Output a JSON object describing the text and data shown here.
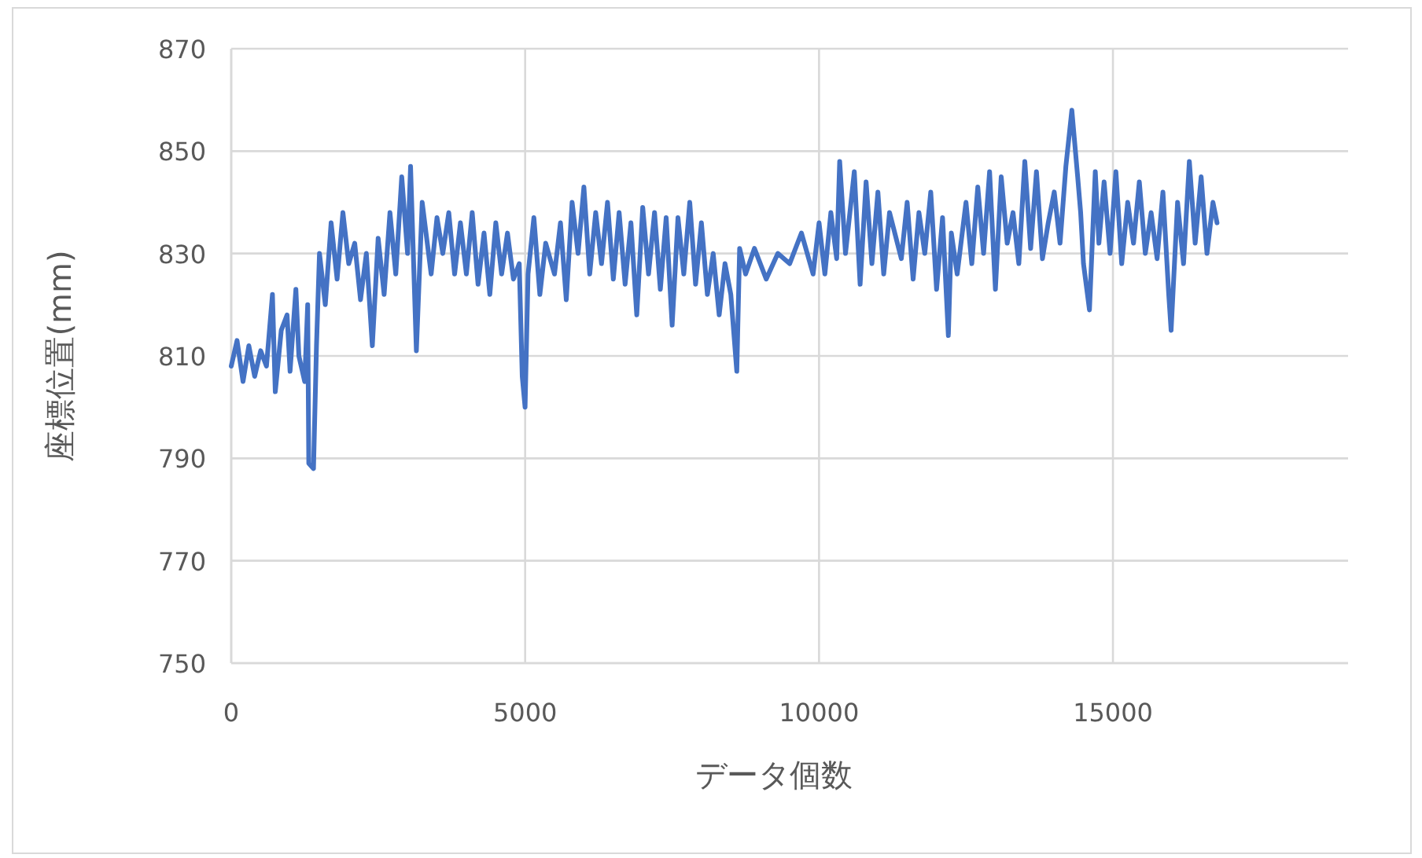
{
  "chart_data": {
    "type": "line",
    "xlabel": "データ個数",
    "ylabel": "座標位置(mm)",
    "xlim": [
      0,
      19000
    ],
    "ylim": [
      750,
      870
    ],
    "xticks": [
      0,
      5000,
      10000,
      15000
    ],
    "yticks": [
      750,
      770,
      790,
      810,
      830,
      850,
      870
    ],
    "grid": true,
    "series": [
      {
        "color": "#4472c4",
        "x": [
          0,
          100,
          200,
          300,
          400,
          500,
          600,
          700,
          750,
          850,
          950,
          1000,
          1100,
          1150,
          1250,
          1300,
          1320,
          1400,
          1450,
          1500,
          1600,
          1700,
          1800,
          1900,
          2000,
          2100,
          2200,
          2300,
          2400,
          2500,
          2600,
          2700,
          2800,
          2900,
          3000,
          3050,
          3150,
          3250,
          3400,
          3500,
          3600,
          3700,
          3800,
          3900,
          4000,
          4100,
          4200,
          4300,
          4400,
          4500,
          4600,
          4700,
          4800,
          4900,
          4950,
          5000,
          5050,
          5150,
          5250,
          5350,
          5500,
          5600,
          5700,
          5800,
          5900,
          6000,
          6100,
          6200,
          6300,
          6400,
          6500,
          6600,
          6700,
          6800,
          6900,
          7000,
          7100,
          7200,
          7300,
          7400,
          7500,
          7600,
          7700,
          7800,
          7900,
          8000,
          8100,
          8200,
          8300,
          8400,
          8500,
          8600,
          8650,
          8750,
          8900,
          9100,
          9300,
          9500,
          9700,
          9900,
          10000,
          10100,
          10200,
          10300,
          10350,
          10450,
          10600,
          10700,
          10800,
          10900,
          11000,
          11100,
          11200,
          11400,
          11500,
          11600,
          11700,
          11800,
          11900,
          12000,
          12100,
          12200,
          12250,
          12350,
          12500,
          12600,
          12700,
          12800,
          12900,
          13000,
          13100,
          13200,
          13300,
          13400,
          13500,
          13600,
          13700,
          13800,
          13900,
          14000,
          14100,
          14200,
          14300,
          14400,
          14450,
          14500,
          14600,
          14700,
          14760,
          14850,
          14950,
          15050,
          15150,
          15250,
          15350,
          15450,
          15550,
          15650,
          15750,
          15850,
          15950,
          15990,
          16100,
          16200,
          16300,
          16400,
          16500,
          16600,
          16700,
          16770
        ],
        "values": [
          808,
          813,
          805,
          812,
          806,
          811,
          808,
          822,
          803,
          815,
          818,
          807,
          823,
          810,
          805,
          820,
          789,
          788,
          812,
          830,
          820,
          836,
          825,
          838,
          828,
          832,
          821,
          830,
          812,
          833,
          822,
          838,
          826,
          845,
          830,
          847,
          811,
          840,
          826,
          837,
          830,
          838,
          826,
          836,
          826,
          838,
          824,
          834,
          822,
          836,
          826,
          834,
          825,
          828,
          806,
          800,
          826,
          837,
          822,
          832,
          826,
          836,
          821,
          840,
          830,
          843,
          826,
          838,
          828,
          840,
          825,
          838,
          824,
          836,
          818,
          839,
          826,
          838,
          823,
          837,
          816,
          837,
          826,
          840,
          824,
          836,
          822,
          830,
          818,
          828,
          822,
          807,
          831,
          826,
          831,
          825,
          830,
          828,
          834,
          826,
          836,
          826,
          838,
          829,
          848,
          830,
          846,
          824,
          844,
          828,
          842,
          826,
          838,
          829,
          840,
          825,
          838,
          830,
          842,
          823,
          837,
          814,
          834,
          826,
          840,
          828,
          843,
          830,
          846,
          823,
          845,
          832,
          838,
          828,
          848,
          831,
          846,
          829,
          836,
          842,
          832,
          847,
          858,
          845,
          838,
          828,
          819,
          846,
          832,
          844,
          830,
          846,
          828,
          840,
          832,
          844,
          830,
          838,
          829,
          842,
          822,
          815,
          840,
          828,
          848,
          832,
          845,
          830,
          840,
          836
        ]
      }
    ]
  }
}
